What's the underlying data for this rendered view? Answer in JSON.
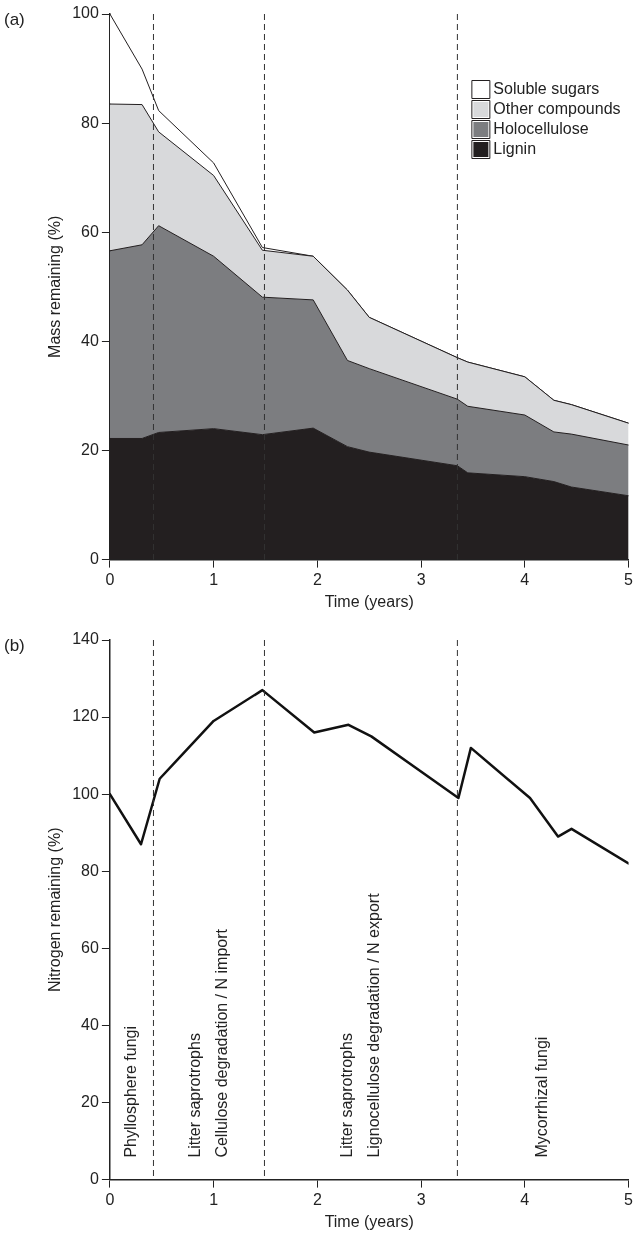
{
  "chart_data": [
    {
      "type": "area",
      "title": "(a)",
      "xlabel": "Time (years)",
      "ylabel": "Mass remaining (%)",
      "stacked": true,
      "x": [
        0,
        0.31,
        0.47,
        1,
        1.47,
        1.96,
        2.29,
        2.5,
        3.35,
        3.45,
        4,
        4.28,
        4.45,
        5
      ],
      "series": [
        {
          "name": "Lignin",
          "color": "#231f20",
          "values": [
            22.2,
            22.2,
            23.3,
            24.0,
            22.9,
            24.1,
            20.7,
            19.7,
            17.2,
            15.9,
            15.2,
            14.3,
            13.3,
            11.7
          ]
        },
        {
          "name": "Holocellulose",
          "color": "#7c7d80",
          "values": [
            34.4,
            35.5,
            37.9,
            31.6,
            25.2,
            23.5,
            15.8,
            15.3,
            12.2,
            12.2,
            11.3,
            9.1,
            9.7,
            9.3
          ]
        },
        {
          "name": "Other compounds",
          "color": "#d8d9db",
          "values": [
            26.9,
            25.7,
            17.2,
            14.8,
            8.6,
            8.0,
            12.9,
            9.4,
            7.6,
            8.1,
            7.0,
            5.8,
            5.4,
            4.0
          ]
        },
        {
          "name": "Soluble sugars",
          "color": "#ffffff",
          "values": [
            16.5,
            6.5,
            3.9,
            2.3,
            0.5,
            0,
            0,
            0,
            0,
            0,
            0,
            0,
            0,
            0
          ]
        }
      ],
      "xlim": [
        0,
        5
      ],
      "xticks": [
        0,
        1,
        2,
        3,
        4,
        5
      ],
      "ylim": [
        0,
        100
      ],
      "yticks": [
        0,
        20,
        40,
        60,
        80,
        100
      ],
      "grid": false,
      "legend": "top right",
      "marker": "none",
      "ref_lines": [
        {
          "axis": "x",
          "value": 0.42,
          "line_style": "dashed",
          "color": "#333333"
        },
        {
          "axis": "x",
          "value": 1.49,
          "line_style": "dashed",
          "color": "#333333"
        },
        {
          "axis": "x",
          "value": 3.35,
          "line_style": "dashed",
          "color": "#333333"
        }
      ]
    },
    {
      "type": "line",
      "title": "(b)",
      "xlabel": "Time (years)",
      "ylabel": "Nitrogen remaining (%)",
      "x": [
        0,
        0.3,
        0.48,
        1,
        1.47,
        1.97,
        2.3,
        2.52,
        3.36,
        3.48,
        4.05,
        4.32,
        4.45,
        5
      ],
      "series": [
        {
          "color": "#111111",
          "values": [
            100,
            87,
            104,
            119,
            127,
            116,
            118,
            115,
            99,
            112,
            99,
            89,
            91,
            82
          ]
        }
      ],
      "xlim": [
        0,
        5
      ],
      "xticks": [
        0,
        1,
        2,
        3,
        4,
        5
      ],
      "ylim": [
        0,
        140
      ],
      "yticks": [
        0,
        20,
        40,
        60,
        80,
        100,
        120,
        140
      ],
      "grid": false,
      "legend": false,
      "marker": "none",
      "line_style": "solid",
      "ref_lines": [
        {
          "axis": "x",
          "value": 0.42,
          "line_style": "dashed",
          "color": "#333333"
        },
        {
          "axis": "x",
          "value": 1.49,
          "line_style": "dashed",
          "color": "#333333"
        },
        {
          "axis": "x",
          "value": 3.35,
          "line_style": "dashed",
          "color": "#333333"
        }
      ],
      "annotations": [
        "Phyllosphere fungi",
        "Litter saprotrophs\nCellulose degradation / N import",
        "Litter saprotrophs\nLignocellulose degradation / N export",
        "Mycorrhizal fungi"
      ]
    }
  ]
}
